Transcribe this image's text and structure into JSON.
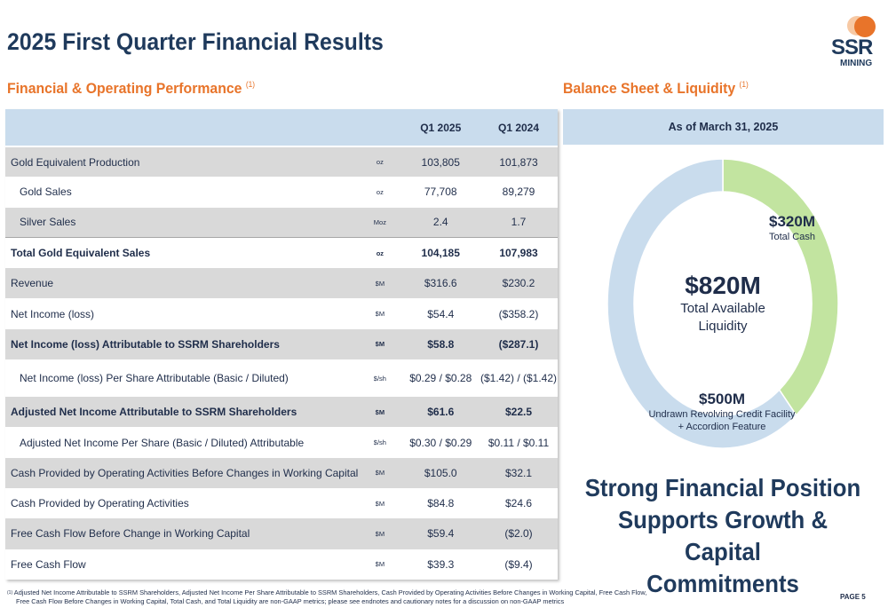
{
  "title": "2025 First Quarter Financial Results",
  "logo": {
    "top": "SSR",
    "bottom": "MINING"
  },
  "left_section": {
    "heading": "Financial & Operating Performance",
    "note": "(1)"
  },
  "right_section": {
    "heading": "Balance Sheet & Liquidity",
    "note": "(1)"
  },
  "table": {
    "headers": [
      "",
      "",
      "Q1 2025",
      "Q1 2024"
    ],
    "rows": [
      {
        "metric": "Gold Equivalent Production",
        "unit": "oz",
        "q1_2025": "103,805",
        "q1_2024": "101,873"
      },
      {
        "metric": "Gold Sales",
        "unit": "oz",
        "q1_2025": "77,708",
        "q1_2024": "89,279"
      },
      {
        "metric": "Silver Sales",
        "unit": "Moz",
        "q1_2025": "2.4",
        "q1_2024": "1.7"
      },
      {
        "metric": "Total Gold Equivalent Sales",
        "unit": "oz",
        "q1_2025": "104,185",
        "q1_2024": "107,983"
      },
      {
        "metric": "Revenue",
        "unit": "$M",
        "q1_2025": "$316.6",
        "q1_2024": "$230.2"
      },
      {
        "metric": "Net Income (loss)",
        "unit": "$M",
        "q1_2025": "$54.4",
        "q1_2024": "($358.2)"
      },
      {
        "metric": "Net Income (loss) Attributable to SSRM Shareholders",
        "unit": "$M",
        "q1_2025": "$58.8",
        "q1_2024": "($287.1)"
      },
      {
        "metric": "Net Income (loss) Per Share Attributable (Basic / Diluted)",
        "unit": "$/sh",
        "q1_2025": "$0.29 / $0.28",
        "q1_2024": "($1.42) / ($1.42)"
      },
      {
        "metric": "Adjusted Net Income Attributable to SSRM Shareholders",
        "unit": "$M",
        "q1_2025": "$61.6",
        "q1_2024": "$22.5"
      },
      {
        "metric": "Adjusted Net Income Per Share (Basic / Diluted) Attributable",
        "unit": "$/sh",
        "q1_2025": "$0.30 / $0.29",
        "q1_2024": "$0.11 / $0.11"
      },
      {
        "metric": "Cash Provided by Operating Activities Before Changes in Working Capital",
        "unit": "$M",
        "q1_2025": "$105.0",
        "q1_2024": "$32.1"
      },
      {
        "metric": "Cash Provided by Operating Activities",
        "unit": "$M",
        "q1_2025": "$84.8",
        "q1_2024": "$24.6"
      },
      {
        "metric": "Free Cash Flow Before Change in Working Capital",
        "unit": "$M",
        "q1_2025": "$59.4",
        "q1_2024": "($2.0)"
      },
      {
        "metric": "Free Cash Flow",
        "unit": "$M",
        "q1_2025": "$39.3",
        "q1_2024": "($9.4)"
      }
    ]
  },
  "balance": {
    "as_of": "As of March 31, 2025",
    "total_value": "$820M",
    "total_label_1": "Total Available",
    "total_label_2": "Liquidity",
    "segments": [
      {
        "value": "$320M",
        "label": "Total Cash",
        "amount": 320,
        "color": "#c2e4a0"
      },
      {
        "value": "$500M",
        "label_1": "Undrawn Revolving Credit Facility",
        "label_2": "+ Accordion Feature",
        "amount": 500,
        "color": "#c9dced"
      }
    ]
  },
  "headline": [
    "Strong Financial Position",
    "Supports Growth & Capital",
    "Commitments"
  ],
  "footnote": {
    "marker": "(1)",
    "line1": "Adjusted Net Income Attributable to SSRM Shareholders, Adjusted Net Income Per Share Attributable to SSRM Shareholders, Cash Provided by Operating Activities Before Changes in Working Capital, Free Cash Flow,",
    "line2": "Free Cash Flow Before Changes in Working Capital, Total Cash, and Total Liquidity are non-GAAP metrics; please see endnotes and cautionary notes for a discussion on non-GAAP metrics"
  },
  "page_label": "PAGE 5"
}
